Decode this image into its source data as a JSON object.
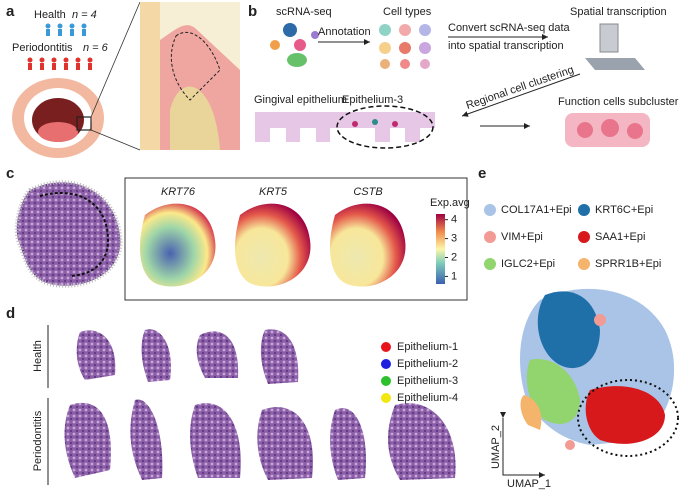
{
  "panel_a": {
    "label": "a",
    "health": "Health",
    "health_n": "n = 4",
    "periodontitis": "Periodontitis",
    "periodontitis_n": "n = 6"
  },
  "panel_b": {
    "label": "b",
    "scrna": "scRNA-seq",
    "annotation": "Annotation",
    "cell_types": "Cell types",
    "convert_1": "Convert scRNA-seq data",
    "convert_2": "into spatial transcription",
    "spatial": "Spatial transcription",
    "regional": "Regional cell clustering",
    "function": "Function cells subcluster",
    "gingival": "Gingival epithelium",
    "epithelium3": "Epithelium-3"
  },
  "panel_c": {
    "label": "c",
    "genes": [
      "KRT76",
      "KRT5",
      "CSTB"
    ],
    "colorbar": {
      "title": "Exp.avg",
      "ylim": [
        0.6,
        4.3
      ],
      "yticks": [
        1,
        2,
        3,
        4
      ]
    }
  },
  "panel_d": {
    "label": "d",
    "groups": [
      "Health",
      "Periodontitis"
    ],
    "legend": [
      {
        "name": "Epithelium-1",
        "color": "#e8141b"
      },
      {
        "name": "Epithelium-2",
        "color": "#1d1ee0"
      },
      {
        "name": "Epithelium-3",
        "color": "#2cc02c"
      },
      {
        "name": "Epithelium-4",
        "color": "#f2e711"
      }
    ]
  },
  "panel_e": {
    "label": "e",
    "clusters": [
      {
        "name": "COL17A1+Epi",
        "color": "#a9c4e6"
      },
      {
        "name": "KRT6C+Epi",
        "color": "#1f6fa8"
      },
      {
        "name": "VIM+Epi",
        "color": "#f29a94"
      },
      {
        "name": "SAA1+Epi",
        "color": "#d7191c"
      },
      {
        "name": "IGLC2+Epi",
        "color": "#92d46e"
      },
      {
        "name": "SPRR1B+Epi",
        "color": "#f5b46b"
      }
    ],
    "x_axis": "UMAP_1",
    "y_axis": "UMAP_2"
  }
}
